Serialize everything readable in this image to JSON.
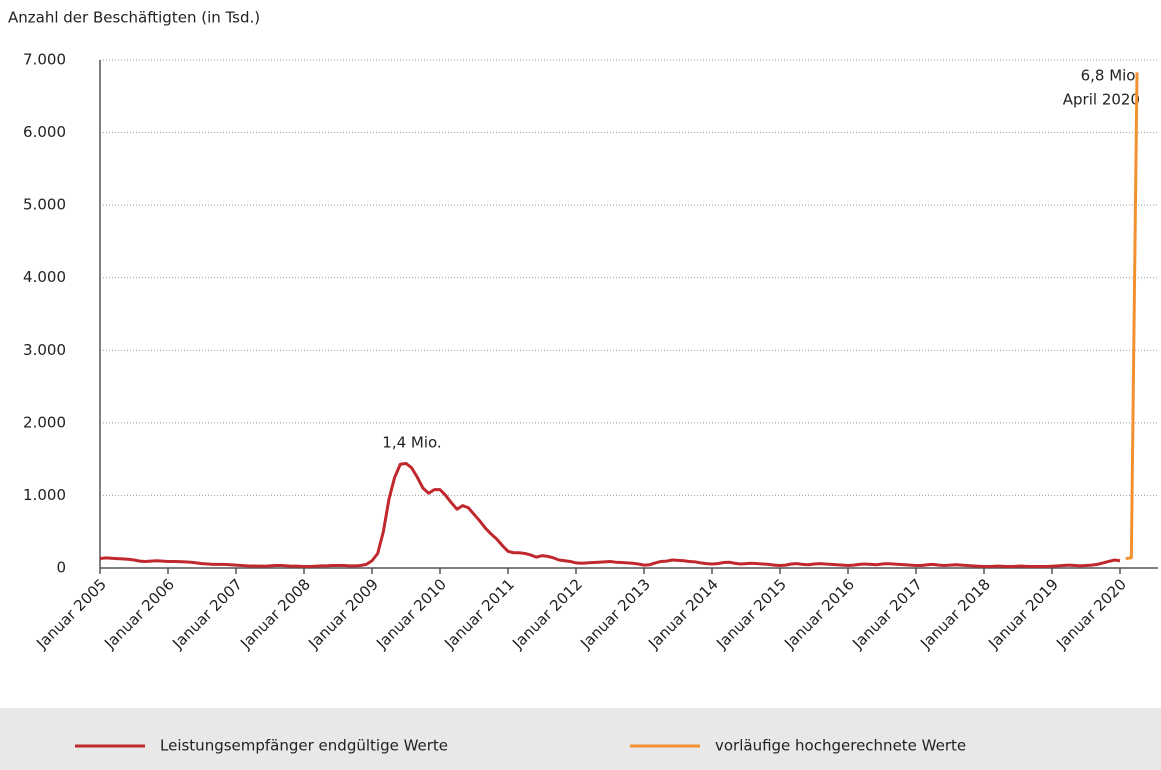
{
  "chart_data": {
    "type": "line",
    "ylabel": "Anzahl der Beschäftigten (in Tsd.)",
    "annotations": [
      "1,4 Mio.",
      "6,8 Mio.",
      "April 2020"
    ],
    "categories": [
      "Januar 2005",
      null,
      null,
      null,
      null,
      null,
      null,
      null,
      null,
      null,
      null,
      null,
      "Januar 2006",
      null,
      null,
      null,
      null,
      null,
      null,
      null,
      null,
      null,
      null,
      null,
      "Januar 2007",
      null,
      null,
      null,
      null,
      null,
      null,
      null,
      null,
      null,
      null,
      null,
      "Januar 2008",
      null,
      null,
      null,
      null,
      null,
      null,
      null,
      null,
      null,
      null,
      null,
      "Januar 2009",
      null,
      null,
      null,
      null,
      null,
      null,
      null,
      null,
      null,
      null,
      null,
      "Januar 2010",
      null,
      null,
      null,
      null,
      null,
      null,
      null,
      null,
      null,
      null,
      null,
      "Januar 2011",
      null,
      null,
      null,
      null,
      null,
      null,
      null,
      null,
      null,
      null,
      null,
      "Januar 2012",
      null,
      null,
      null,
      null,
      null,
      null,
      null,
      null,
      null,
      null,
      null,
      "Januar 2013",
      null,
      null,
      null,
      null,
      null,
      null,
      null,
      null,
      null,
      null,
      null,
      "Januar 2014",
      null,
      null,
      null,
      null,
      null,
      null,
      null,
      null,
      null,
      null,
      null,
      "Januar 2015",
      null,
      null,
      null,
      null,
      null,
      null,
      null,
      null,
      null,
      null,
      null,
      "Januar 2016",
      null,
      null,
      null,
      null,
      null,
      null,
      null,
      null,
      null,
      null,
      null,
      "Januar 2017",
      null,
      null,
      null,
      null,
      null,
      null,
      null,
      null,
      null,
      null,
      null,
      "Januar 2018",
      null,
      null,
      null,
      null,
      null,
      null,
      null,
      null,
      null,
      null,
      null,
      "Januar 2019",
      null,
      null,
      null,
      null,
      null,
      null,
      null,
      null,
      null,
      null,
      null,
      "Januar 2020",
      null,
      null,
      null
    ],
    "series": [
      {
        "name": "Leistungsempfänger endgültige Werte",
        "color": "#c0282d",
        "values": [
          130,
          140,
          135,
          130,
          125,
          120,
          110,
          95,
          90,
          95,
          100,
          95,
          90,
          90,
          88,
          85,
          80,
          70,
          60,
          55,
          50,
          50,
          50,
          45,
          40,
          35,
          30,
          28,
          25,
          25,
          30,
          35,
          35,
          30,
          25,
          25,
          20,
          20,
          25,
          30,
          30,
          35,
          35,
          35,
          30,
          30,
          35,
          50,
          100,
          200,
          500,
          950,
          1250,
          1430,
          1440,
          1380,
          1250,
          1100,
          1030,
          1080,
          1080,
          1000,
          900,
          810,
          860,
          830,
          740,
          650,
          550,
          470,
          400,
          310,
          230,
          210,
          210,
          200,
          180,
          150,
          170,
          160,
          140,
          110,
          100,
          90,
          70,
          65,
          70,
          75,
          80,
          85,
          90,
          80,
          75,
          70,
          65,
          55,
          40,
          45,
          70,
          90,
          95,
          110,
          105,
          100,
          90,
          85,
          70,
          60,
          55,
          60,
          75,
          80,
          65,
          55,
          60,
          65,
          60,
          55,
          50,
          40,
          35,
          40,
          55,
          60,
          50,
          45,
          55,
          60,
          55,
          50,
          45,
          40,
          35,
          40,
          50,
          55,
          50,
          45,
          55,
          60,
          55,
          50,
          45,
          40,
          35,
          35,
          45,
          50,
          40,
          35,
          40,
          45,
          40,
          35,
          30,
          25,
          20,
          20,
          25,
          25,
          20,
          20,
          25,
          25,
          20,
          20,
          20,
          20,
          25,
          30,
          35,
          40,
          35,
          30,
          35,
          40,
          50,
          70,
          90,
          110,
          100,
          null,
          null,
          null
        ]
      },
      {
        "name": "vorläufige hochgerechnete Werte",
        "color": "#f39130",
        "values": [
          null,
          null,
          null,
          null,
          null,
          null,
          null,
          null,
          null,
          null,
          null,
          null,
          null,
          null,
          null,
          null,
          null,
          null,
          null,
          null,
          null,
          null,
          null,
          null,
          null,
          null,
          null,
          null,
          null,
          null,
          null,
          null,
          null,
          null,
          null,
          null,
          null,
          null,
          null,
          null,
          null,
          null,
          null,
          null,
          null,
          null,
          null,
          null,
          null,
          null,
          null,
          null,
          null,
          null,
          null,
          null,
          null,
          null,
          null,
          null,
          null,
          null,
          null,
          null,
          null,
          null,
          null,
          null,
          null,
          null,
          null,
          null,
          null,
          null,
          null,
          null,
          null,
          null,
          null,
          null,
          null,
          null,
          null,
          null,
          null,
          null,
          null,
          null,
          null,
          null,
          null,
          null,
          null,
          null,
          null,
          null,
          null,
          null,
          null,
          null,
          null,
          null,
          null,
          null,
          null,
          null,
          null,
          null,
          null,
          null,
          null,
          null,
          null,
          null,
          null,
          null,
          null,
          null,
          null,
          null,
          null,
          null,
          null,
          null,
          null,
          null,
          null,
          null,
          null,
          null,
          null,
          null,
          null,
          null,
          null,
          null,
          null,
          null,
          null,
          null,
          null,
          null,
          null,
          null,
          null,
          null,
          null,
          null,
          null,
          null,
          null,
          null,
          null,
          null,
          null,
          null,
          null,
          null,
          null,
          null,
          null,
          null,
          null,
          null,
          null,
          null,
          null,
          null,
          null,
          null,
          null,
          null,
          null,
          null,
          null,
          null,
          null,
          null,
          null,
          null,
          null,
          130,
          140,
          6830
        ]
      }
    ],
    "ylim": [
      0,
      7000
    ],
    "yticks": [
      0,
      {
        "value": 1000,
        "label": "1.000"
      },
      {
        "value": 2000,
        "label": "2.000"
      },
      {
        "value": 3000,
        "label": "3.000"
      },
      {
        "value": 4000,
        "label": "4.000"
      },
      {
        "value": 5000,
        "label": "5.000"
      },
      {
        "value": 6000,
        "label": "6.000"
      },
      {
        "value": 7000,
        "label": "7.000"
      }
    ],
    "grid": true
  }
}
